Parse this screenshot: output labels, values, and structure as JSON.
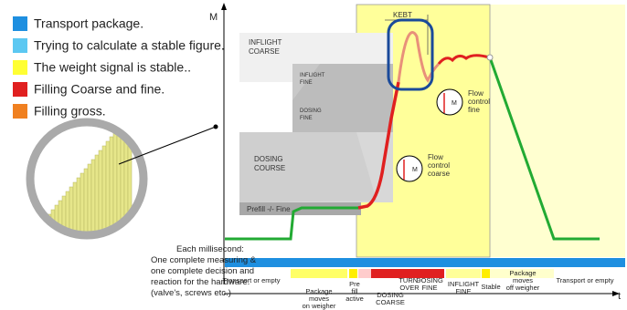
{
  "legend": [
    "Transport package.",
    "Trying to calculate a stable figure.",
    "The weight signal is stable..",
    "Filling Coarse and fine.",
    "Filling gross."
  ],
  "axes": {
    "y": "M",
    "x": "t"
  },
  "zones": {
    "inflight_coarse": [
      "INFLIGHT",
      "COARSE"
    ],
    "inflight_fine": [
      "INFLIGHT",
      "FINE"
    ],
    "dosing_fine": [
      "DOSING",
      "FINE"
    ],
    "dosing_course": [
      "DOSING",
      "COURSE"
    ],
    "prefill": "Prefill -/- Fine",
    "kebt": "KEBT"
  },
  "flow_fine": {
    "symbol": "M",
    "lines": [
      "Flow",
      "control",
      "fine"
    ]
  },
  "flow_coarse": {
    "symbol": "M",
    "lines": [
      "Flow",
      "control",
      "coarse"
    ]
  },
  "note": [
    "Each millisecond:",
    "One complete measuring &",
    "one complete decision and",
    "reaction for the hardware.",
    "(valve's, screws etc.)"
  ],
  "phases": [
    [
      "Transport or empty"
    ],
    [
      "Package",
      "moves",
      "on weigher"
    ],
    [
      "Pre",
      "fill",
      "active"
    ],
    [
      "DOSING",
      "COARSE"
    ],
    [
      "TURN-",
      "OVER"
    ],
    [
      "DOSING",
      "FINE"
    ],
    [
      "INFLIGHT",
      "FINE"
    ],
    [
      "Stable"
    ],
    [
      "Package",
      "moves",
      "off weigher"
    ],
    [
      "Transport or empty"
    ]
  ]
}
